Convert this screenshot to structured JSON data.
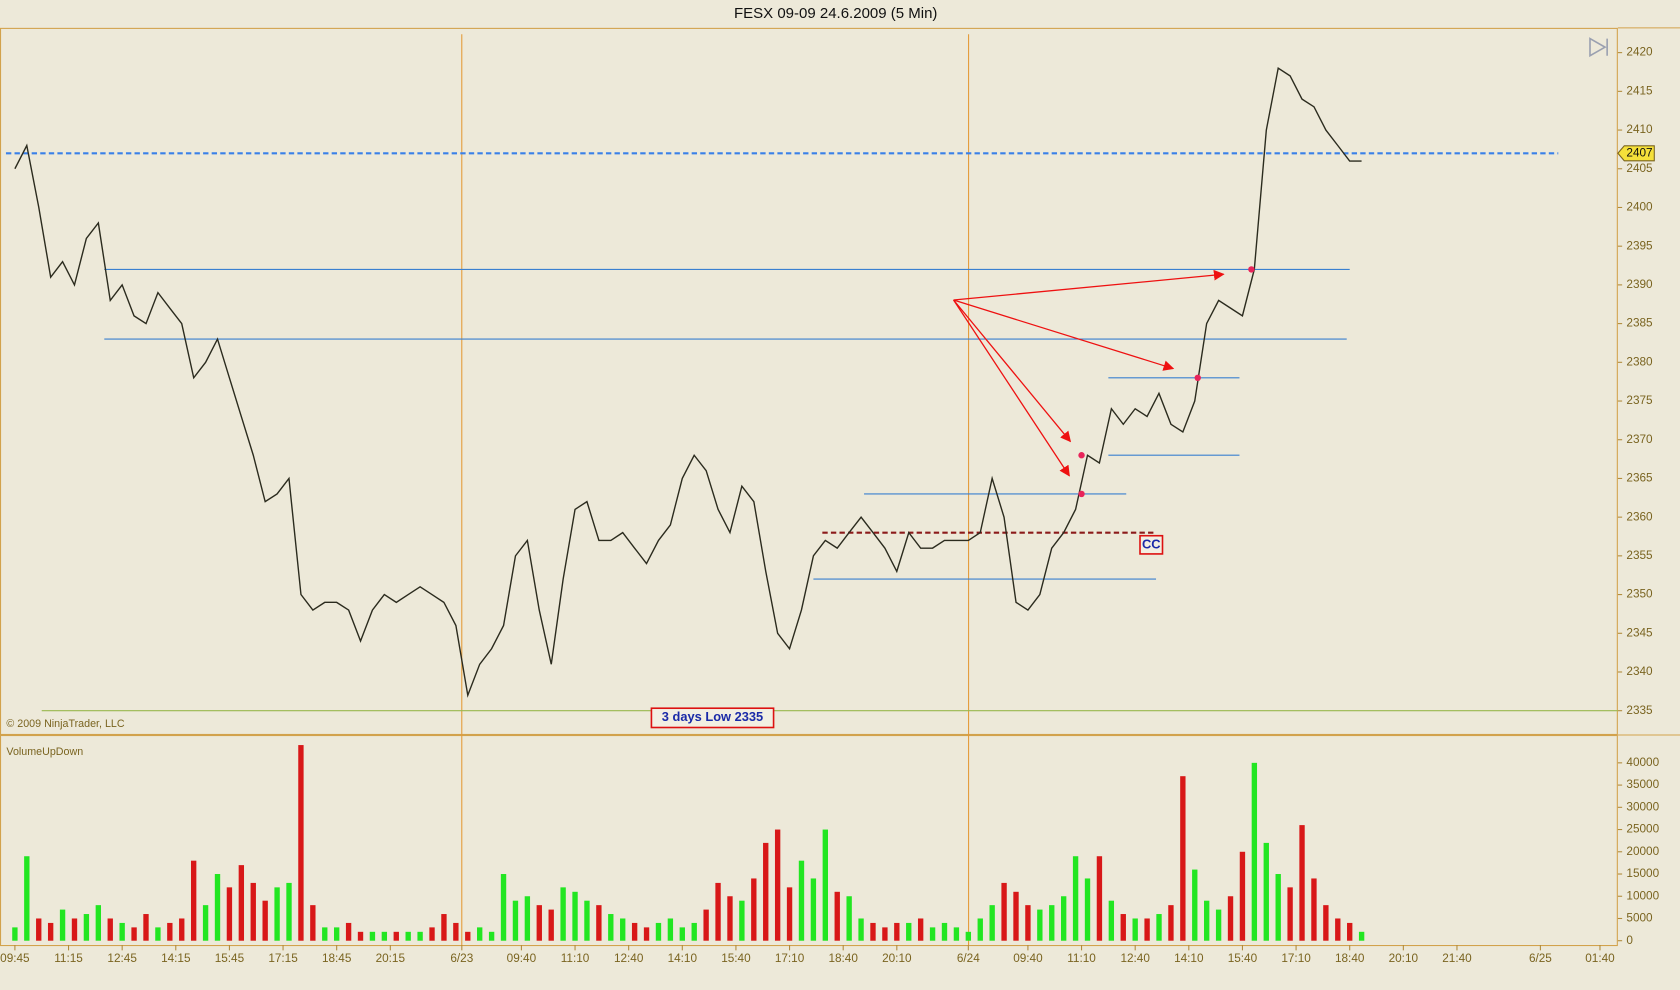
{
  "chart_data": [
    {
      "type": "line",
      "title": "FESX 09-09  24.6.2009 (5 Min)",
      "copyright": "© 2009 NinjaTrader, LLC",
      "color": "#2b2b1e",
      "x": [
        0,
        4,
        8,
        12,
        16,
        20,
        24,
        28,
        32,
        36,
        40,
        44,
        48,
        52,
        56,
        60,
        64,
        68,
        72,
        76,
        80,
        84,
        88,
        92,
        96,
        100,
        104,
        108,
        112,
        116,
        120,
        124,
        128,
        132,
        136,
        140,
        144,
        148,
        152,
        156,
        160,
        164,
        168,
        172,
        176,
        180,
        184,
        188,
        192,
        196,
        200,
        204,
        208,
        212,
        216,
        220,
        224,
        228,
        232,
        236,
        240,
        244,
        248,
        252,
        256,
        260,
        264,
        268,
        272,
        276,
        280,
        284,
        288,
        292,
        296,
        300,
        304,
        308,
        312,
        316,
        320,
        324,
        328,
        332,
        336,
        340,
        344,
        348,
        352,
        356,
        360,
        364,
        368,
        372,
        376,
        380,
        384,
        388,
        392,
        396,
        400,
        404,
        408,
        412,
        416,
        420,
        424,
        428,
        432,
        436,
        440,
        444,
        448,
        452
      ],
      "values": [
        2405,
        2408,
        2400,
        2391,
        2393,
        2390,
        2396,
        2398,
        2388,
        2390,
        2386,
        2385,
        2389,
        2387,
        2385,
        2378,
        2380,
        2383,
        2378,
        2373,
        2368,
        2362,
        2363,
        2365,
        2350,
        2348,
        2349,
        2349,
        2348,
        2344,
        2348,
        2350,
        2349,
        2350,
        2351,
        2350,
        2349,
        2346,
        2337,
        2341,
        2343,
        2346,
        2355,
        2357,
        2348,
        2341,
        2352,
        2361,
        2362,
        2357,
        2357,
        2358,
        2356,
        2354,
        2357,
        2359,
        2365,
        2368,
        2366,
        2361,
        2358,
        2364,
        2362,
        2353,
        2345,
        2343,
        2348,
        2355,
        2357,
        2356,
        2358,
        2360,
        2358,
        2356,
        2353,
        2358,
        2356,
        2356,
        2357,
        2357,
        2357,
        2358,
        2365,
        2360,
        2349,
        2348,
        2350,
        2356,
        2358,
        2361,
        2368,
        2367,
        2374,
        2372,
        2374,
        2373,
        2376,
        2372,
        2371,
        2375,
        2385,
        2388,
        2387,
        2386,
        2392,
        2410,
        2418,
        2417,
        2414,
        2413,
        2410,
        2408,
        2406,
        2406
      ],
      "xlim": [
        -5,
        538
      ],
      "xticks": [
        {
          "value": 0,
          "label": "09:45"
        },
        {
          "value": 18,
          "label": "11:15"
        },
        {
          "value": 36,
          "label": "12:45"
        },
        {
          "value": 54,
          "label": "14:15"
        },
        {
          "value": 72,
          "label": "15:45"
        },
        {
          "value": 90,
          "label": "17:15"
        },
        {
          "value": 108,
          "label": "18:45"
        },
        {
          "value": 126,
          "label": "20:15"
        },
        {
          "value": 150,
          "label": "6/23"
        },
        {
          "value": 170,
          "label": "09:40"
        },
        {
          "value": 188,
          "label": "11:10"
        },
        {
          "value": 206,
          "label": "12:40"
        },
        {
          "value": 224,
          "label": "14:10"
        },
        {
          "value": 242,
          "label": "15:40"
        },
        {
          "value": 260,
          "label": "17:10"
        },
        {
          "value": 278,
          "label": "18:40"
        },
        {
          "value": 296,
          "label": "20:10"
        },
        {
          "value": 320,
          "label": "6/24"
        },
        {
          "value": 340,
          "label": "09:40"
        },
        {
          "value": 358,
          "label": "11:10"
        },
        {
          "value": 376,
          "label": "12:40"
        },
        {
          "value": 394,
          "label": "14:10"
        },
        {
          "value": 412,
          "label": "15:40"
        },
        {
          "value": 430,
          "label": "17:10"
        },
        {
          "value": 448,
          "label": "18:40"
        },
        {
          "value": 466,
          "label": "20:10"
        },
        {
          "value": 484,
          "label": "21:40"
        },
        {
          "value": 512,
          "label": "6/25"
        },
        {
          "value": 532,
          "label": "01:40"
        }
      ],
      "ylim": [
        2332,
        2423.2
      ],
      "yticks": [
        2335,
        2340,
        2345,
        2350,
        2355,
        2360,
        2365,
        2370,
        2375,
        2380,
        2385,
        2390,
        2395,
        2400,
        2405,
        2410,
        2415,
        2420
      ],
      "levels": [
        {
          "value": 2392,
          "x": [
            30,
            448
          ],
          "color": "#3a80d0",
          "style": "solid"
        },
        {
          "value": 2383,
          "x": [
            30,
            447
          ],
          "color": "#3a80d0",
          "style": "solid"
        },
        {
          "value": 2378,
          "x": [
            367,
            411
          ],
          "color": "#3a80d0",
          "style": "solid"
        },
        {
          "value": 2368,
          "x": [
            367,
            411
          ],
          "color": "#3a80d0",
          "style": "solid"
        },
        {
          "value": 2363,
          "x": [
            285,
            373
          ],
          "color": "#3a80d0",
          "style": "solid"
        },
        {
          "value": 2352,
          "x": [
            268,
            383
          ],
          "color": "#3a80d0",
          "style": "solid"
        },
        {
          "value": 2358,
          "x": [
            271,
            383
          ],
          "color": "#8b1a1a",
          "style": "dashed"
        },
        {
          "value": 2407,
          "x": [
            -3,
            518
          ],
          "color": "#3a80e8",
          "style": "dashed"
        },
        {
          "value": 2335,
          "x": [
            9,
            538
          ],
          "color": "#9ab84e",
          "style": "solid"
        }
      ],
      "markers": [
        {
          "x": 358,
          "value": 2368
        },
        {
          "x": 358,
          "value": 2363
        },
        {
          "x": 397,
          "value": 2378
        },
        {
          "x": 415,
          "value": 2392
        }
      ],
      "marker_color": "#e8245a",
      "last_price": {
        "value": 2407,
        "label": "2407"
      },
      "annotations": [
        "3 days Low 2335",
        "CC"
      ]
    },
    {
      "type": "bar",
      "title": "VolumeUpDown",
      "up_color": "#22e622",
      "down_color": "#d81818",
      "values": [
        3000,
        19000,
        5000,
        4000,
        7000,
        5000,
        6000,
        8000,
        5000,
        4000,
        3000,
        6000,
        3000,
        4000,
        5000,
        18000,
        8000,
        15000,
        12000,
        17000,
        13000,
        9000,
        12000,
        13000,
        44000,
        8000,
        3000,
        3000,
        4000,
        2000,
        2000,
        2000,
        2000,
        2000,
        2000,
        3000,
        6000,
        4000,
        2000,
        3000,
        2000,
        15000,
        9000,
        10000,
        8000,
        7000,
        12000,
        11000,
        9000,
        8000,
        6000,
        5000,
        4000,
        3000,
        4000,
        5000,
        3000,
        4000,
        7000,
        13000,
        10000,
        9000,
        14000,
        22000,
        25000,
        12000,
        18000,
        14000,
        25000,
        11000,
        10000,
        5000,
        4000,
        3000,
        4000,
        4000,
        5000,
        3000,
        4000,
        3000,
        2000,
        5000,
        8000,
        13000,
        11000,
        8000,
        7000,
        8000,
        10000,
        19000,
        14000,
        19000,
        9000,
        6000,
        5000,
        5000,
        6000,
        8000,
        37000,
        16000,
        9000,
        7000,
        10000,
        20000,
        40000,
        22000,
        15000,
        12000,
        26000,
        14000,
        8000,
        5000,
        4000,
        2000
      ],
      "ylim": [
        0,
        45300
      ],
      "yticks": [
        0,
        5000,
        10000,
        15000,
        20000,
        25000,
        30000,
        35000,
        40000
      ]
    }
  ]
}
